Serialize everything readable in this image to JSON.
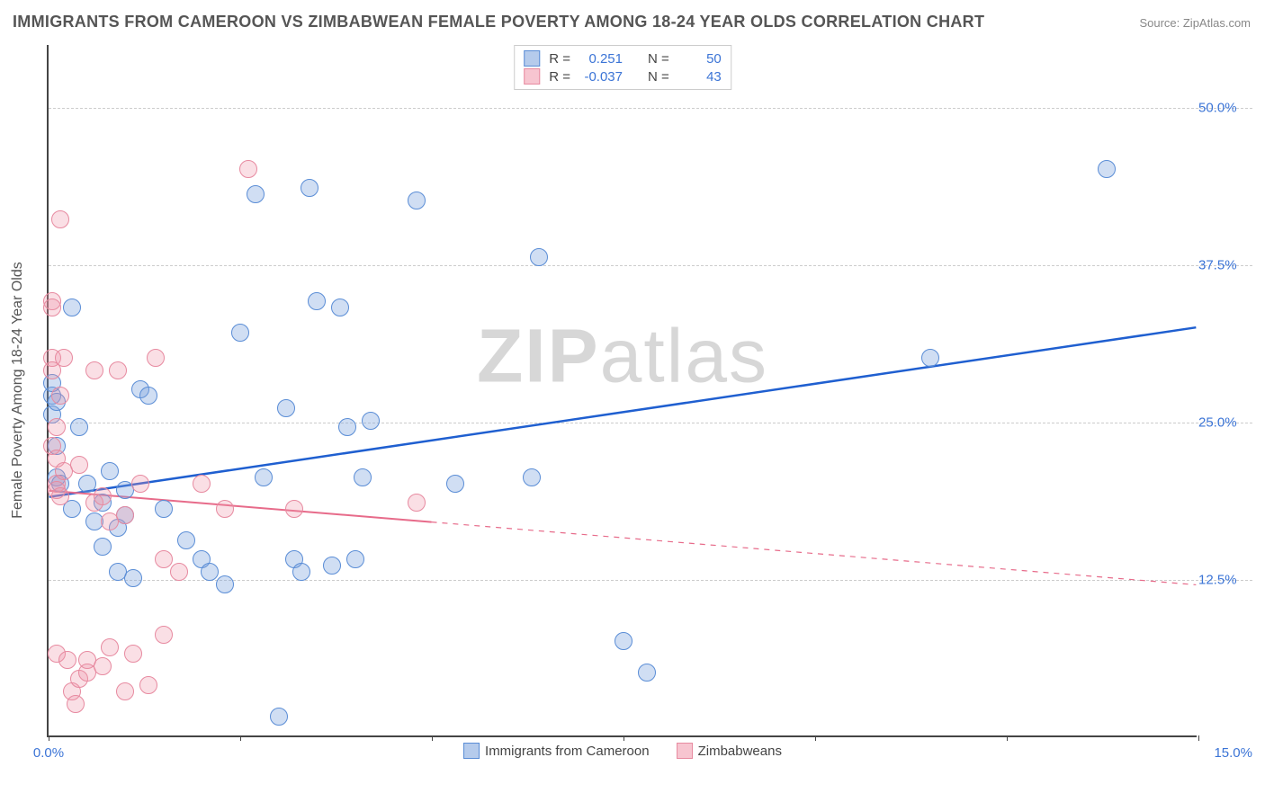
{
  "title": "IMMIGRANTS FROM CAMEROON VS ZIMBABWEAN FEMALE POVERTY AMONG 18-24 YEAR OLDS CORRELATION CHART",
  "source": "Source: ZipAtlas.com",
  "watermark_bold": "ZIP",
  "watermark_light": "atlas",
  "y_axis_title": "Female Poverty Among 18-24 Year Olds",
  "chart": {
    "type": "scatter",
    "xlim": [
      0.0,
      15.0
    ],
    "ylim": [
      0.0,
      55.0
    ],
    "x_ticks": [
      0.0,
      2.5,
      5.0,
      7.5,
      10.0,
      12.5,
      15.0
    ],
    "x_tick_labels_visible": [
      0.0,
      15.0
    ],
    "y_gridlines": [
      12.5,
      25.0,
      37.5,
      50.0
    ],
    "y_tick_labels": [
      "12.5%",
      "25.0%",
      "37.5%",
      "50.0%"
    ],
    "x_tick_labels": [
      "0.0%",
      "15.0%"
    ],
    "background_color": "#ffffff",
    "grid_color": "#cccccc",
    "axis_color": "#444444",
    "label_color": "#3b74d6",
    "title_color": "#555555",
    "title_fontsize": 18,
    "label_fontsize": 15,
    "point_radius": 10,
    "series": [
      {
        "id": "a",
        "label": "Immigrants from Cameroon",
        "fill_color": "rgba(120,160,220,0.35)",
        "stroke_color": "#5a8dd6",
        "R": "0.251",
        "N": "50",
        "trend": {
          "x1": 0.0,
          "y1": 19.0,
          "x2": 15.0,
          "y2": 32.5,
          "color": "#1f5fd0",
          "width": 2.5,
          "solid_to_x": 15.0
        },
        "points": [
          [
            0.05,
            25.5
          ],
          [
            0.05,
            27.0
          ],
          [
            0.05,
            28.0
          ],
          [
            0.1,
            26.5
          ],
          [
            0.1,
            20.5
          ],
          [
            0.1,
            23.0
          ],
          [
            0.15,
            20.0
          ],
          [
            0.3,
            34.0
          ],
          [
            0.3,
            18.0
          ],
          [
            0.4,
            24.5
          ],
          [
            0.5,
            20.0
          ],
          [
            0.6,
            17.0
          ],
          [
            0.7,
            15.0
          ],
          [
            0.7,
            18.5
          ],
          [
            0.8,
            21.0
          ],
          [
            0.9,
            13.0
          ],
          [
            0.9,
            16.5
          ],
          [
            1.0,
            17.5
          ],
          [
            1.0,
            19.5
          ],
          [
            1.1,
            12.5
          ],
          [
            1.2,
            27.5
          ],
          [
            1.3,
            27.0
          ],
          [
            1.5,
            18.0
          ],
          [
            1.8,
            15.5
          ],
          [
            2.0,
            14.0
          ],
          [
            2.1,
            13.0
          ],
          [
            2.3,
            12.0
          ],
          [
            2.5,
            32.0
          ],
          [
            2.7,
            43.0
          ],
          [
            2.8,
            20.5
          ],
          [
            3.0,
            1.5
          ],
          [
            3.1,
            26.0
          ],
          [
            3.2,
            14.0
          ],
          [
            3.3,
            13.0
          ],
          [
            3.4,
            43.5
          ],
          [
            3.5,
            34.5
          ],
          [
            3.7,
            13.5
          ],
          [
            3.8,
            34.0
          ],
          [
            3.9,
            24.5
          ],
          [
            4.0,
            14.0
          ],
          [
            4.1,
            20.5
          ],
          [
            4.2,
            25.0
          ],
          [
            4.8,
            42.5
          ],
          [
            5.3,
            20.0
          ],
          [
            6.3,
            20.5
          ],
          [
            6.4,
            38.0
          ],
          [
            7.5,
            7.5
          ],
          [
            7.8,
            5.0
          ],
          [
            11.5,
            30.0
          ],
          [
            13.8,
            45.0
          ]
        ]
      },
      {
        "id": "b",
        "label": "Zimbabweans",
        "fill_color": "rgba(240,150,170,0.30)",
        "stroke_color": "#e78aa0",
        "R": "-0.037",
        "N": "43",
        "trend": {
          "x1": 0.0,
          "y1": 19.5,
          "x2": 15.0,
          "y2": 12.0,
          "color": "#e76b8a",
          "width": 2,
          "solid_to_x": 5.0
        },
        "points": [
          [
            0.05,
            30.0
          ],
          [
            0.05,
            29.0
          ],
          [
            0.05,
            34.5
          ],
          [
            0.05,
            34.0
          ],
          [
            0.05,
            23.0
          ],
          [
            0.1,
            22.0
          ],
          [
            0.1,
            24.5
          ],
          [
            0.1,
            20.0
          ],
          [
            0.1,
            19.5
          ],
          [
            0.1,
            6.5
          ],
          [
            0.15,
            41.0
          ],
          [
            0.15,
            27.0
          ],
          [
            0.15,
            19.0
          ],
          [
            0.2,
            30.0
          ],
          [
            0.2,
            21.0
          ],
          [
            0.25,
            6.0
          ],
          [
            0.3,
            3.5
          ],
          [
            0.35,
            2.5
          ],
          [
            0.4,
            4.5
          ],
          [
            0.4,
            21.5
          ],
          [
            0.5,
            6.0
          ],
          [
            0.5,
            5.0
          ],
          [
            0.6,
            18.5
          ],
          [
            0.6,
            29.0
          ],
          [
            0.7,
            19.0
          ],
          [
            0.7,
            5.5
          ],
          [
            0.8,
            7.0
          ],
          [
            0.8,
            17.0
          ],
          [
            0.9,
            29.0
          ],
          [
            1.0,
            3.5
          ],
          [
            1.0,
            17.5
          ],
          [
            1.1,
            6.5
          ],
          [
            1.2,
            20.0
          ],
          [
            1.3,
            4.0
          ],
          [
            1.4,
            30.0
          ],
          [
            1.5,
            8.0
          ],
          [
            1.5,
            14.0
          ],
          [
            1.7,
            13.0
          ],
          [
            2.0,
            20.0
          ],
          [
            2.3,
            18.0
          ],
          [
            2.6,
            45.0
          ],
          [
            3.2,
            18.0
          ],
          [
            4.8,
            18.5
          ]
        ]
      }
    ]
  },
  "legend_top": {
    "row_label_R": "R =",
    "row_label_N": "N ="
  }
}
